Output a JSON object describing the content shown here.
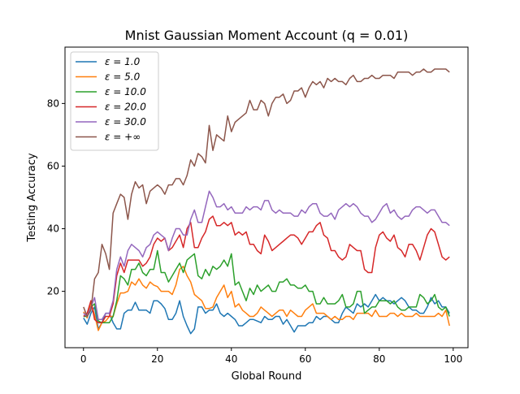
{
  "colors": {
    "series": [
      "#1f77b4",
      "#ff7f0e",
      "#2ca02c",
      "#d62728",
      "#9467bd",
      "#8c564b"
    ],
    "axes": "#000000",
    "background": "#ffffff"
  },
  "chart_data": {
    "type": "line",
    "title": "Mnist Gaussian Moment Account (q = 0.01)",
    "xlabel": "Global Round",
    "ylabel": "Testing Accuracy",
    "xlim": [
      -5,
      104
    ],
    "ylim": [
      2,
      98
    ],
    "xticks": [
      0,
      20,
      40,
      60,
      80,
      100
    ],
    "yticks": [
      20,
      40,
      60,
      80
    ],
    "grid": false,
    "legend_position": "top-left",
    "x": [
      0,
      1,
      2,
      3,
      4,
      5,
      6,
      7,
      8,
      9,
      10,
      11,
      12,
      13,
      14,
      15,
      16,
      17,
      18,
      19,
      20,
      21,
      22,
      23,
      24,
      25,
      26,
      27,
      28,
      29,
      30,
      31,
      32,
      33,
      34,
      35,
      36,
      37,
      38,
      39,
      40,
      41,
      42,
      43,
      44,
      45,
      46,
      47,
      48,
      49,
      50,
      51,
      52,
      53,
      54,
      55,
      56,
      57,
      58,
      59,
      60,
      61,
      62,
      63,
      64,
      65,
      66,
      67,
      68,
      69,
      70,
      71,
      72,
      73,
      74,
      75,
      76,
      77,
      78,
      79,
      80,
      81,
      82,
      83,
      84,
      85,
      86,
      87,
      88,
      89,
      90,
      91,
      92,
      93,
      94,
      95,
      96,
      97,
      98,
      99
    ],
    "series": [
      {
        "name": "ε = 1.0",
        "values": [
          11.5,
          9.5,
          13,
          15,
          8,
          10,
          13,
          13,
          10,
          8,
          8,
          13,
          14,
          14,
          16.5,
          14,
          14,
          14,
          13,
          17,
          17,
          16,
          14.5,
          11,
          11,
          13,
          17,
          12,
          9,
          6.5,
          8,
          15,
          15,
          13,
          14,
          14,
          16,
          13,
          12,
          13,
          12,
          11,
          9,
          9,
          10,
          11,
          11,
          10.5,
          10,
          12,
          11,
          11,
          12,
          12,
          9.5,
          11,
          9,
          7,
          9,
          9,
          9,
          10,
          10,
          12,
          11,
          12,
          12,
          11,
          10,
          10,
          13,
          15,
          14,
          13,
          16,
          15,
          16,
          15,
          17,
          19,
          17,
          18,
          17,
          17,
          16,
          17,
          18,
          17,
          15,
          14,
          14,
          13,
          13,
          15,
          18,
          16,
          17,
          15,
          15,
          13
        ]
      },
      {
        "name": "ε = 5.0",
        "values": [
          13.5,
          11.5,
          16.5,
          12.5,
          7.5,
          10,
          10.5,
          12,
          12,
          16,
          19.5,
          19.5,
          20,
          23,
          22,
          24,
          22,
          21,
          23,
          22,
          21.5,
          20,
          20,
          20,
          19,
          22,
          27,
          28,
          25,
          23,
          19,
          18,
          17,
          14.5,
          14.5,
          15,
          18,
          20,
          22,
          18,
          20,
          15,
          16,
          14,
          13,
          12,
          12,
          13,
          15,
          14,
          13,
          12,
          13,
          14,
          14,
          12,
          14,
          13,
          12,
          12,
          14,
          15,
          16,
          13,
          13,
          13,
          12,
          11,
          12,
          11,
          11,
          12,
          12,
          11,
          13,
          13,
          13,
          13,
          12,
          14,
          12,
          12,
          12,
          13,
          13,
          12,
          13,
          12,
          12,
          12,
          13,
          12,
          12,
          12,
          12,
          12,
          13,
          12,
          14,
          9
        ]
      },
      {
        "name": "ε = 10.0",
        "values": [
          12,
          12,
          15,
          16,
          10.5,
          10,
          10,
          10,
          12,
          17,
          25,
          24,
          22,
          27,
          27,
          29,
          26,
          25,
          27,
          27,
          33,
          26,
          26,
          23,
          25,
          27,
          29,
          26,
          30,
          31,
          32,
          25,
          24,
          27,
          25,
          28,
          27,
          28,
          30,
          28,
          32,
          22,
          23,
          20,
          17,
          21,
          19,
          22,
          20,
          21,
          22,
          20,
          20,
          23,
          23,
          24,
          22,
          22,
          21,
          21,
          22,
          20,
          20,
          16,
          16,
          18,
          16,
          16,
          16,
          17,
          19,
          15,
          15,
          16,
          20,
          20,
          13,
          14,
          15,
          15,
          17,
          17,
          17,
          16,
          17,
          15,
          14,
          14,
          15,
          15,
          15,
          19,
          18,
          16,
          17,
          19,
          15,
          14,
          15,
          12
        ]
      },
      {
        "name": "ε = 20.0",
        "values": [
          12,
          13,
          17,
          11,
          10,
          10,
          12,
          12,
          16,
          25,
          29,
          26,
          30,
          30,
          30,
          30,
          28,
          29,
          31,
          35,
          37,
          36,
          37,
          33,
          34,
          36,
          38,
          34,
          40,
          42,
          34,
          34,
          37,
          39,
          43,
          44,
          41,
          41,
          42,
          41,
          42,
          38,
          39,
          38,
          39,
          35,
          35,
          33,
          32,
          38,
          36,
          33,
          34,
          35,
          36,
          37,
          38,
          38,
          37,
          35,
          37,
          39,
          39,
          41,
          42,
          38,
          37,
          33,
          33,
          31,
          30,
          31,
          35,
          34,
          33,
          33,
          27,
          26,
          26,
          34,
          38,
          39,
          37,
          36,
          38,
          34,
          33,
          31,
          35,
          35,
          33,
          30,
          34,
          38,
          40,
          39,
          35,
          31,
          30,
          31
        ]
      },
      {
        "name": "ε = 30.0",
        "values": [
          13,
          12,
          15,
          18,
          11,
          11,
          13,
          13,
          17,
          27,
          31,
          28,
          33,
          35,
          34,
          33,
          31,
          34,
          35,
          38,
          39,
          38,
          37,
          33,
          37,
          40,
          40,
          38,
          38,
          43,
          46,
          42,
          42,
          47,
          52,
          50,
          47,
          47,
          48,
          46,
          47,
          45,
          45,
          45,
          47,
          46,
          47,
          47,
          46,
          49,
          49,
          46,
          45,
          46,
          45,
          45,
          45,
          44,
          44,
          46,
          45,
          47,
          48,
          48,
          45,
          44,
          44,
          45,
          43,
          46,
          47,
          48,
          47,
          48,
          47,
          45,
          44,
          44,
          42,
          43,
          45,
          47,
          48,
          45,
          46,
          44,
          43,
          44,
          44,
          46,
          47,
          47,
          46,
          45,
          46,
          46,
          44,
          42,
          42,
          41
        ]
      },
      {
        "name": "ε = +∞",
        "values": [
          15,
          12,
          14,
          24,
          26,
          35,
          32,
          27,
          45,
          48,
          51,
          50,
          43,
          51,
          55,
          53,
          54,
          48,
          52,
          53,
          54,
          53,
          51,
          54,
          54,
          56,
          56,
          54,
          57,
          62,
          60,
          64,
          63,
          61,
          73,
          65,
          70,
          69,
          68,
          76,
          71,
          74,
          75,
          76,
          77,
          81,
          78,
          78,
          81,
          80,
          76,
          80,
          82,
          82,
          83,
          80,
          81,
          84,
          84,
          85,
          82,
          85,
          87,
          86,
          87,
          85,
          88,
          87,
          88,
          87,
          87,
          86,
          88,
          89,
          87,
          87,
          88,
          88,
          89,
          88,
          88,
          89,
          89,
          89,
          88,
          90,
          90,
          90,
          90,
          89,
          90,
          90,
          91,
          90,
          90,
          91,
          91,
          91,
          91,
          90
        ]
      }
    ]
  }
}
